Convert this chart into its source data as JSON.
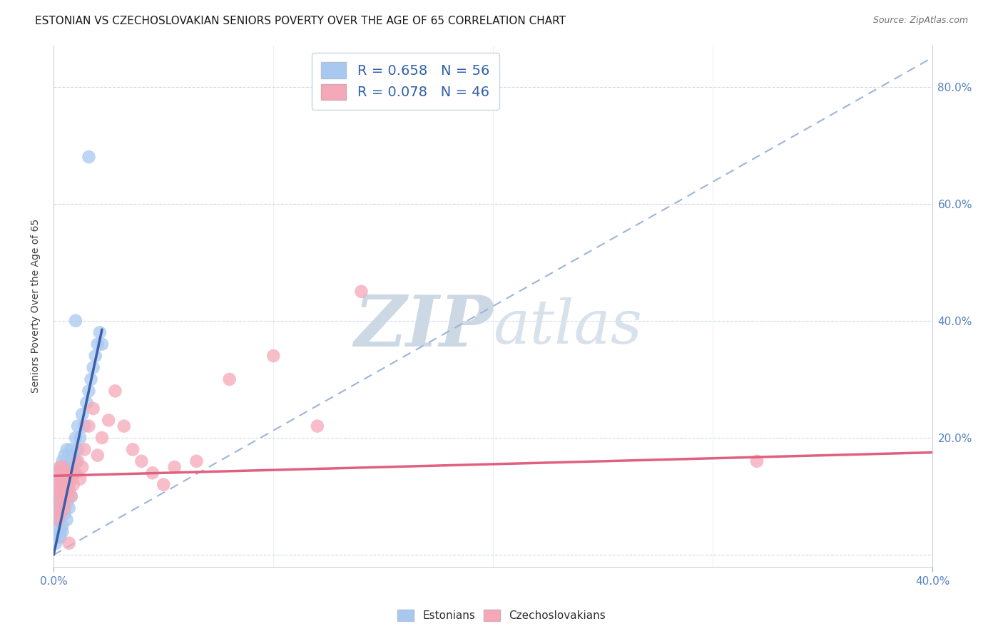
{
  "title": "ESTONIAN VS CZECHOSLOVAKIAN SENIORS POVERTY OVER THE AGE OF 65 CORRELATION CHART",
  "source": "Source: ZipAtlas.com",
  "ylabel": "Seniors Poverty Over the Age of 65",
  "xlim": [
    0.0,
    0.4
  ],
  "ylim": [
    -0.02,
    0.87
  ],
  "ytick_positions": [
    0.0,
    0.2,
    0.4,
    0.6,
    0.8
  ],
  "ytick_labels": [
    "",
    "20.0%",
    "40.0%",
    "60.0%",
    "80.0%"
  ],
  "xtick_positions": [
    0.0,
    0.4
  ],
  "xtick_labels": [
    "0.0%",
    "40.0%"
  ],
  "estonian_R": 0.658,
  "estonian_N": 56,
  "czechoslovakian_R": 0.078,
  "czechoslovakian_N": 46,
  "estonian_color": "#a8c8f0",
  "czechoslovakian_color": "#f5a8b8",
  "estonian_line_color": "#3a5fa8",
  "czechoslovakian_line_color": "#e06080",
  "regression_dashed_color": "#9db5d8",
  "background_color": "#ffffff",
  "watermark_text": "ZIPatlas",
  "watermark_color": "#dde6f0",
  "estonian_x": [
    0.001,
    0.001,
    0.001,
    0.002,
    0.002,
    0.002,
    0.002,
    0.002,
    0.003,
    0.003,
    0.003,
    0.003,
    0.003,
    0.003,
    0.003,
    0.004,
    0.004,
    0.004,
    0.004,
    0.004,
    0.004,
    0.005,
    0.005,
    0.005,
    0.005,
    0.005,
    0.006,
    0.006,
    0.006,
    0.006,
    0.006,
    0.007,
    0.007,
    0.007,
    0.008,
    0.008,
    0.008,
    0.009,
    0.009,
    0.01,
    0.01,
    0.011,
    0.011,
    0.012,
    0.013,
    0.014,
    0.015,
    0.016,
    0.017,
    0.018,
    0.019,
    0.02,
    0.021,
    0.022,
    0.016,
    0.01
  ],
  "estonian_y": [
    0.02,
    0.05,
    0.08,
    0.03,
    0.06,
    0.09,
    0.11,
    0.14,
    0.04,
    0.07,
    0.1,
    0.12,
    0.15,
    0.03,
    0.06,
    0.05,
    0.08,
    0.11,
    0.13,
    0.16,
    0.04,
    0.07,
    0.1,
    0.12,
    0.15,
    0.17,
    0.06,
    0.09,
    0.12,
    0.15,
    0.18,
    0.08,
    0.12,
    0.15,
    0.1,
    0.14,
    0.18,
    0.14,
    0.17,
    0.16,
    0.2,
    0.18,
    0.22,
    0.2,
    0.24,
    0.22,
    0.26,
    0.28,
    0.3,
    0.32,
    0.34,
    0.36,
    0.38,
    0.36,
    0.68,
    0.4
  ],
  "czechoslovakian_x": [
    0.001,
    0.001,
    0.002,
    0.002,
    0.002,
    0.003,
    0.003,
    0.003,
    0.003,
    0.004,
    0.004,
    0.004,
    0.005,
    0.005,
    0.005,
    0.006,
    0.006,
    0.007,
    0.007,
    0.008,
    0.008,
    0.009,
    0.01,
    0.011,
    0.012,
    0.013,
    0.014,
    0.016,
    0.018,
    0.02,
    0.022,
    0.025,
    0.028,
    0.032,
    0.036,
    0.04,
    0.045,
    0.05,
    0.055,
    0.065,
    0.08,
    0.1,
    0.12,
    0.14,
    0.32,
    0.007
  ],
  "czechoslovakian_y": [
    0.08,
    0.12,
    0.06,
    0.1,
    0.14,
    0.07,
    0.11,
    0.13,
    0.15,
    0.09,
    0.12,
    0.15,
    0.08,
    0.11,
    0.14,
    0.1,
    0.13,
    0.11,
    0.14,
    0.1,
    0.13,
    0.12,
    0.14,
    0.16,
    0.13,
    0.15,
    0.18,
    0.22,
    0.25,
    0.17,
    0.2,
    0.23,
    0.28,
    0.22,
    0.18,
    0.16,
    0.14,
    0.12,
    0.15,
    0.16,
    0.3,
    0.34,
    0.22,
    0.45,
    0.16,
    0.02
  ],
  "blue_line_x0": 0.0,
  "blue_line_y0": 0.0,
  "blue_line_x1": 0.022,
  "blue_line_y1": 0.385,
  "dash_line_x0": 0.0,
  "dash_line_y0": 0.0,
  "dash_line_x1": 0.4,
  "dash_line_y1": 0.85,
  "pink_line_x0": 0.0,
  "pink_line_y0": 0.135,
  "pink_line_x1": 0.4,
  "pink_line_y1": 0.175
}
